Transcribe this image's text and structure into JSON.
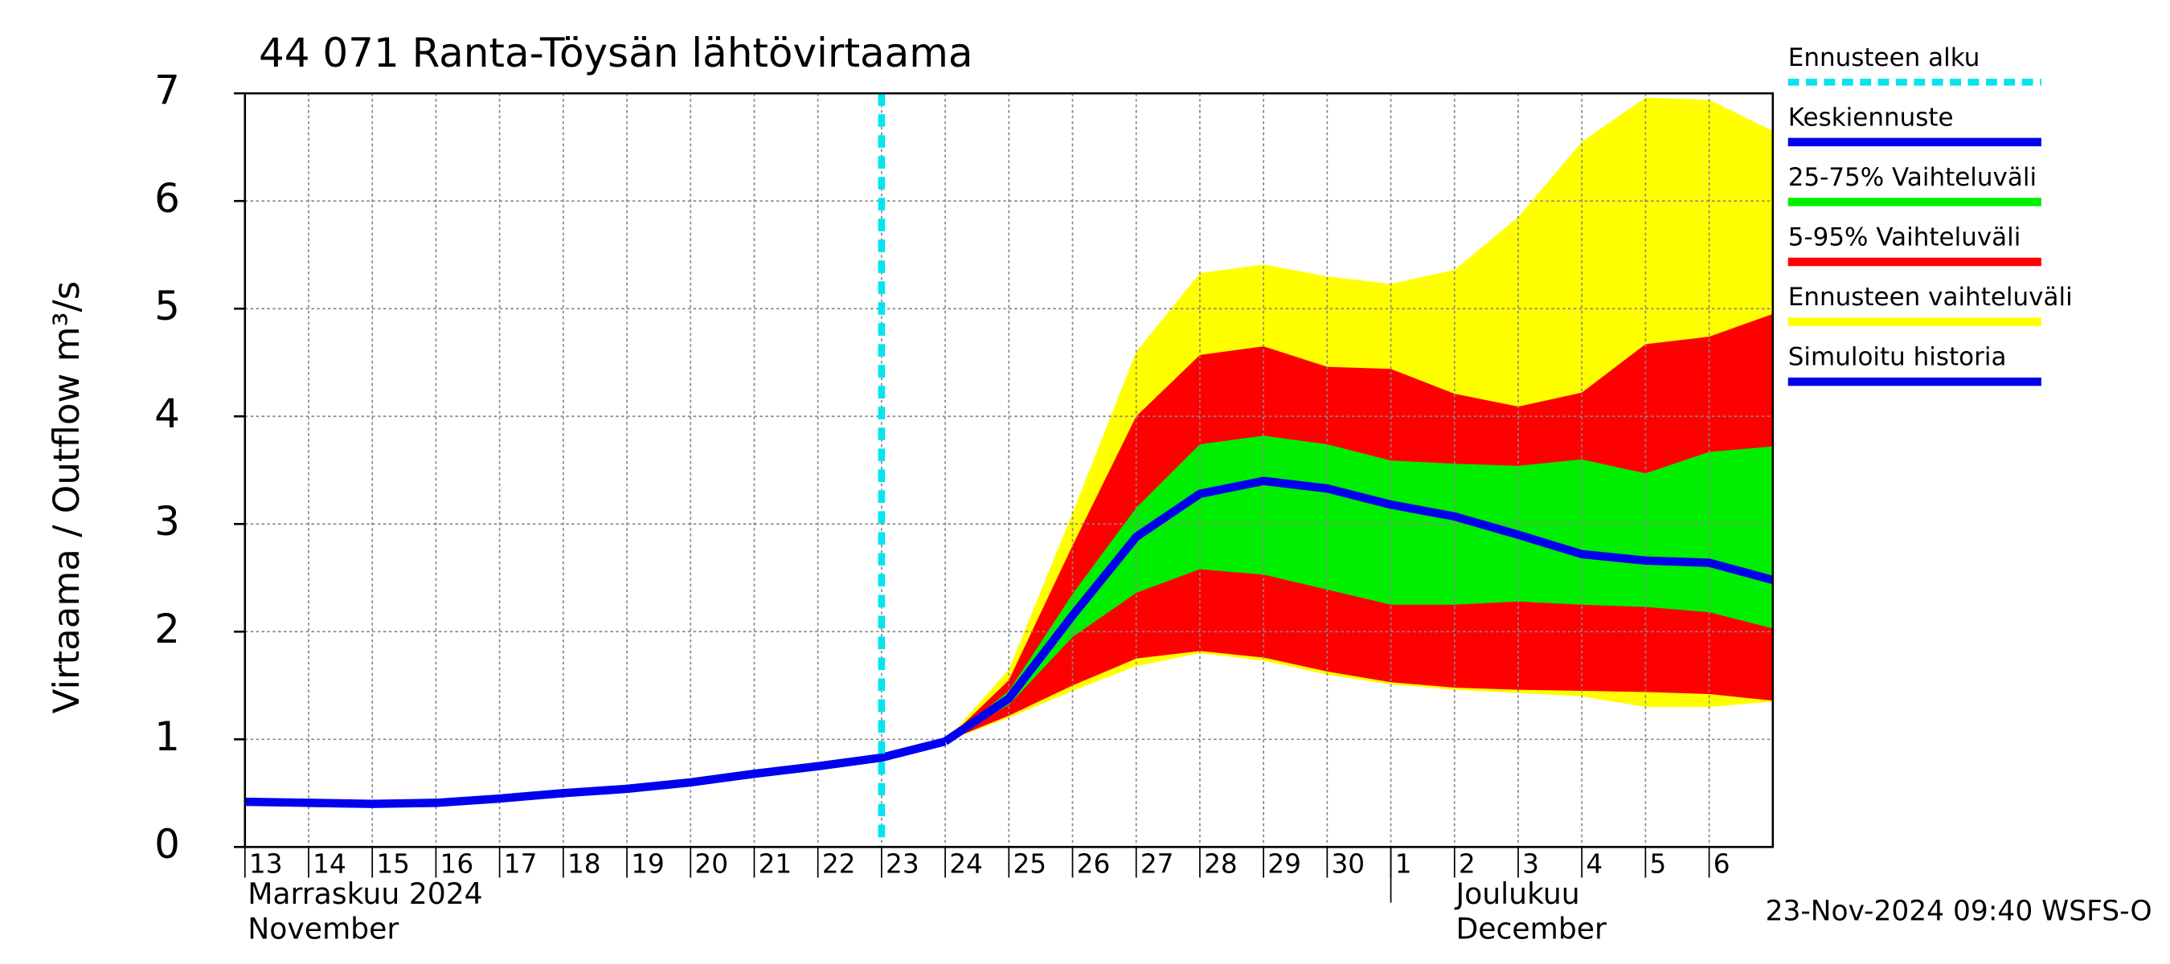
{
  "chart_data": {
    "type": "forecast-band",
    "title": "44 071 Ranta-Töysän lähtövirtaama",
    "y_label": "Virtaama / Outflow    m³/s",
    "month_labels": [
      [
        "Marraskuu 2024",
        "November"
      ],
      [
        "Joulukuu",
        "December"
      ]
    ],
    "timestamp": "23-Nov-2024 09:40 WSFS-O",
    "xlim": [
      0,
      24
    ],
    "xticks": [
      {
        "value": 0,
        "label": "13"
      },
      {
        "value": 1,
        "label": "14"
      },
      {
        "value": 2,
        "label": "15"
      },
      {
        "value": 3,
        "label": "16"
      },
      {
        "value": 4,
        "label": "17"
      },
      {
        "value": 5,
        "label": "18"
      },
      {
        "value": 6,
        "label": "19"
      },
      {
        "value": 7,
        "label": "20"
      },
      {
        "value": 8,
        "label": "21"
      },
      {
        "value": 9,
        "label": "22"
      },
      {
        "value": 10,
        "label": "23"
      },
      {
        "value": 11,
        "label": "24"
      },
      {
        "value": 12,
        "label": "25"
      },
      {
        "value": 13,
        "label": "26"
      },
      {
        "value": 14,
        "label": "27"
      },
      {
        "value": 15,
        "label": "28"
      },
      {
        "value": 16,
        "label": "29"
      },
      {
        "value": 17,
        "label": "30"
      },
      {
        "value": 18,
        "label": "1"
      },
      {
        "value": 19,
        "label": "2"
      },
      {
        "value": 20,
        "label": "3"
      },
      {
        "value": 21,
        "label": "4"
      },
      {
        "value": 22,
        "label": "5"
      },
      {
        "value": 23,
        "label": "6"
      }
    ],
    "ylim": [
      0,
      7
    ],
    "yticks": [
      0,
      1,
      2,
      3,
      4,
      5,
      6,
      7
    ],
    "grid": true,
    "month_start": 18,
    "forecast_start": {
      "name": "Ennusteen alku",
      "color": "#00e5ee",
      "x": 10
    },
    "bands": [
      {
        "name": "Ennusteen vaihteluväli",
        "color": "#ffff00",
        "x": [
          11,
          12,
          13,
          14,
          15,
          16,
          17,
          18,
          19,
          20,
          21,
          22,
          23,
          24
        ],
        "upper": [
          0.98,
          1.65,
          3.1,
          4.6,
          5.33,
          5.41,
          5.3,
          5.23,
          5.36,
          5.85,
          6.55,
          6.96,
          6.94,
          6.65
        ],
        "lower": [
          0.98,
          1.2,
          1.45,
          1.68,
          1.8,
          1.73,
          1.6,
          1.51,
          1.46,
          1.43,
          1.4,
          1.3,
          1.3,
          1.35
        ]
      },
      {
        "name": "5-95% Vaihteluväli",
        "color": "#ff0000",
        "x": [
          11,
          12,
          13,
          14,
          15,
          16,
          17,
          18,
          19,
          20,
          21,
          22,
          23,
          24
        ],
        "upper": [
          0.98,
          1.55,
          2.8,
          4.0,
          4.57,
          4.65,
          4.46,
          4.44,
          4.21,
          4.09,
          4.22,
          4.67,
          4.74,
          4.95
        ],
        "lower": [
          0.98,
          1.22,
          1.5,
          1.75,
          1.82,
          1.76,
          1.63,
          1.53,
          1.48,
          1.46,
          1.45,
          1.44,
          1.42,
          1.36
        ]
      },
      {
        "name": "25-75% Vaihteluväli",
        "color": "#00ee00",
        "x": [
          11,
          12,
          13,
          14,
          15,
          16,
          17,
          18,
          19,
          20,
          21,
          22,
          23,
          24
        ],
        "upper": [
          0.98,
          1.45,
          2.35,
          3.15,
          3.74,
          3.82,
          3.74,
          3.59,
          3.56,
          3.54,
          3.6,
          3.47,
          3.67,
          3.72
        ],
        "lower": [
          0.98,
          1.32,
          1.95,
          2.36,
          2.58,
          2.53,
          2.39,
          2.25,
          2.25,
          2.28,
          2.25,
          2.23,
          2.18,
          2.03
        ]
      }
    ],
    "series": [
      {
        "name": "Keskiennuste",
        "color": "#0000ee",
        "x": [
          11,
          12,
          13,
          14,
          15,
          16,
          17,
          18,
          19,
          20,
          21,
          22,
          23,
          24
        ],
        "values": [
          0.98,
          1.38,
          2.15,
          2.88,
          3.28,
          3.4,
          3.33,
          3.18,
          3.07,
          2.9,
          2.72,
          2.66,
          2.64,
          2.48
        ]
      },
      {
        "name": "Simuloitu historia",
        "color": "#0000ee",
        "x": [
          0,
          1,
          2,
          3,
          4,
          5,
          6,
          7,
          8,
          9,
          10,
          11
        ],
        "values": [
          0.42,
          0.41,
          0.4,
          0.41,
          0.45,
          0.5,
          0.54,
          0.6,
          0.68,
          0.75,
          0.83,
          0.98
        ]
      }
    ],
    "legend_order": [
      "forecast_start",
      "series.0",
      "bands.2",
      "bands.1",
      "bands.0",
      "series.1"
    ]
  }
}
